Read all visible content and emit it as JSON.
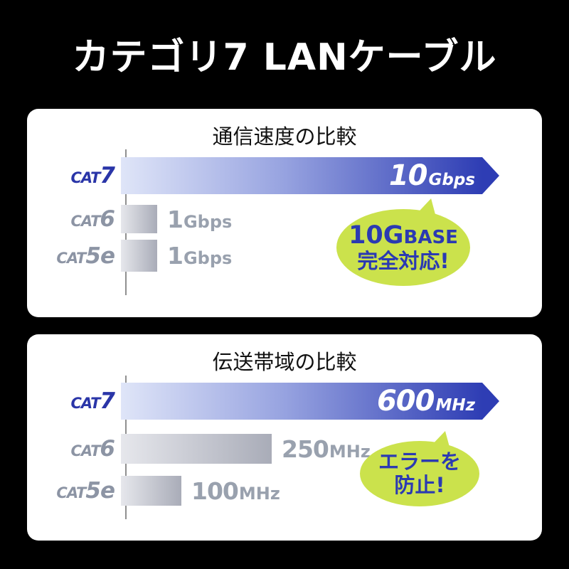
{
  "page": {
    "title": "カテゴリ7 LANケーブル"
  },
  "colors": {
    "background": "#000000",
    "panel": "#ffffff",
    "bar_blue_light": "#dfe5f8",
    "bar_blue_dark": "#2e3db4",
    "bar_gray_light": "#e6e7ec",
    "bar_gray_dark": "#a9acb8",
    "cat7_label_blue": "#2a35a8",
    "gray_label": "#8c94a4",
    "gray_value": "#99a1ae",
    "bubble_green": "#cbe24c",
    "bubble_text_blue": "#2b3ab2",
    "axis_gray": "#909090"
  },
  "chart_data": [
    {
      "type": "bar",
      "orientation": "horizontal",
      "title": "通信速度の比較",
      "categories": [
        "CAT7",
        "CAT6",
        "CAT5e"
      ],
      "values": [
        10,
        1,
        1
      ],
      "unit": "Gbps",
      "xlim": [
        0,
        10
      ],
      "value_labels": [
        "10Gbps",
        "1Gbps",
        "1Gbps"
      ],
      "highlight_category": "CAT7",
      "callout": "10GBASE完全対応!",
      "rows": [
        {
          "cat_prefix": "CAT",
          "cat_suffix": "7",
          "value_num": "10",
          "value_unit": "Gbps"
        },
        {
          "cat_prefix": "CAT",
          "cat_suffix": "6",
          "value_num": "1",
          "value_unit": "Gbps"
        },
        {
          "cat_prefix": "CAT",
          "cat_suffix": "5e",
          "value_num": "1",
          "value_unit": "Gbps"
        }
      ],
      "bubble": {
        "line1_big": "10G",
        "line1_small": "BASE",
        "line2": "完全対応!"
      }
    },
    {
      "type": "bar",
      "orientation": "horizontal",
      "title": "伝送帯域の比較",
      "categories": [
        "CAT7",
        "CAT6",
        "CAT5e"
      ],
      "values": [
        600,
        250,
        100
      ],
      "unit": "MHz",
      "xlim": [
        0,
        600
      ],
      "value_labels": [
        "600MHz",
        "250MHz",
        "100MHz"
      ],
      "highlight_category": "CAT7",
      "callout": "エラーを防止!",
      "rows": [
        {
          "cat_prefix": "CAT",
          "cat_suffix": "7",
          "value_num": "600",
          "value_unit": "MHz"
        },
        {
          "cat_prefix": "CAT",
          "cat_suffix": "6",
          "value_num": "250",
          "value_unit": "MHz"
        },
        {
          "cat_prefix": "CAT",
          "cat_suffix": "5e",
          "value_num": "100",
          "value_unit": "MHz"
        }
      ],
      "bubble": {
        "line1": "エラーを",
        "line2": "防止!"
      }
    }
  ]
}
